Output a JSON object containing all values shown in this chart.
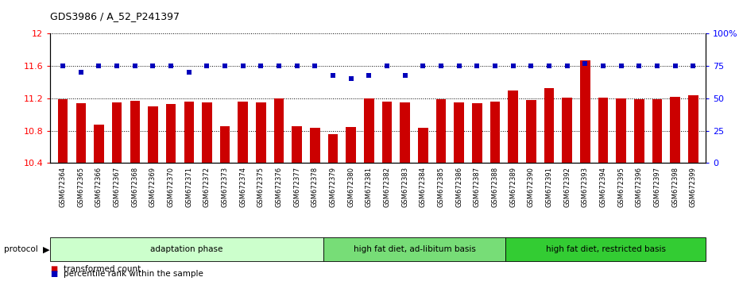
{
  "title": "GDS3986 / A_52_P241397",
  "categories": [
    "GSM672364",
    "GSM672365",
    "GSM672366",
    "GSM672367",
    "GSM672368",
    "GSM672369",
    "GSM672370",
    "GSM672371",
    "GSM672372",
    "GSM672373",
    "GSM672374",
    "GSM672375",
    "GSM672376",
    "GSM672377",
    "GSM672378",
    "GSM672379",
    "GSM672380",
    "GSM672381",
    "GSM672382",
    "GSM672383",
    "GSM672384",
    "GSM672385",
    "GSM672386",
    "GSM672387",
    "GSM672388",
    "GSM672389",
    "GSM672390",
    "GSM672391",
    "GSM672392",
    "GSM672393",
    "GSM672394",
    "GSM672395",
    "GSM672396",
    "GSM672397",
    "GSM672398",
    "GSM672399"
  ],
  "bar_values": [
    11.19,
    11.14,
    10.87,
    11.15,
    11.17,
    11.1,
    11.13,
    11.16,
    11.15,
    10.86,
    11.16,
    11.15,
    11.2,
    10.86,
    10.84,
    10.76,
    10.85,
    11.2,
    11.16,
    11.15,
    10.84,
    11.19,
    11.15,
    11.14,
    11.16,
    11.3,
    11.18,
    11.33,
    11.21,
    11.67,
    11.21,
    11.2,
    11.19,
    11.19,
    11.22,
    11.24
  ],
  "percentile_values": [
    75,
    70,
    75,
    75,
    75,
    75,
    75,
    70,
    75,
    75,
    75,
    75,
    75,
    75,
    75,
    68,
    65,
    68,
    75,
    68,
    75,
    75,
    75,
    75,
    75,
    75,
    75,
    75,
    75,
    77,
    75,
    75,
    75,
    75,
    75,
    75
  ],
  "bar_color": "#cc0000",
  "dot_color": "#0000bb",
  "ylim_left": [
    10.4,
    12.0
  ],
  "ylim_right": [
    0,
    100
  ],
  "yticks_left": [
    10.4,
    10.8,
    11.2,
    11.6,
    12.0
  ],
  "ytick_labels_left": [
    "10.4",
    "10.8",
    "11.2",
    "11.6",
    "12"
  ],
  "yticks_right": [
    0,
    25,
    50,
    75,
    100
  ],
  "ytick_labels_right": [
    "0",
    "25",
    "50",
    "75",
    "100%"
  ],
  "group_labels": [
    "adaptation phase",
    "high fat diet, ad-libitum basis",
    "high fat diet, restricted basis"
  ],
  "group_ranges": [
    [
      0,
      15
    ],
    [
      15,
      25
    ],
    [
      25,
      36
    ]
  ],
  "group_colors": [
    "#ccffcc",
    "#77dd77",
    "#33cc33"
  ],
  "protocol_label": "protocol",
  "legend_entries": [
    "transformed count",
    "percentile rank within the sample"
  ],
  "legend_colors": [
    "#cc0000",
    "#0000bb"
  ],
  "background_color": "#ffffff"
}
